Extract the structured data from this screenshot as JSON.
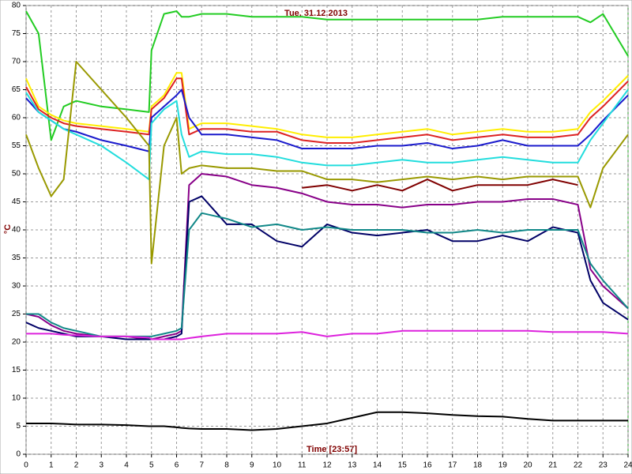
{
  "chart_data": {
    "type": "line",
    "title": "Tue, 31.12.2013",
    "x_label": "Time [23:57]",
    "y_label": "°C",
    "x": [
      0,
      0.5,
      1,
      1.5,
      2,
      3,
      4,
      4.9,
      5,
      5.5,
      6,
      6.2,
      6.5,
      7,
      8,
      9,
      10,
      11,
      12,
      13,
      14,
      15,
      16,
      17,
      18,
      19,
      20,
      21,
      22,
      22.5,
      23,
      24
    ],
    "xlim": [
      0,
      24
    ],
    "xticks": [
      0,
      1,
      2,
      3,
      4,
      5,
      6,
      7,
      8,
      9,
      10,
      11,
      12,
      13,
      14,
      15,
      16,
      17,
      18,
      19,
      20,
      21,
      22,
      23,
      24
    ],
    "ylim": [
      0,
      80
    ],
    "yticks": [
      0,
      5,
      10,
      15,
      20,
      25,
      30,
      35,
      40,
      45,
      50,
      55,
      60,
      65,
      70,
      75,
      80
    ],
    "grid": true,
    "series": [
      {
        "color": "#22cc22",
        "values": [
          79,
          75,
          56,
          62,
          63,
          62,
          61.5,
          61,
          72,
          78.5,
          79,
          78,
          78,
          78.5,
          78.5,
          78,
          78,
          78,
          77.5,
          77.5,
          77.5,
          77.5,
          77.5,
          77.5,
          77.5,
          78,
          78,
          78,
          78,
          77,
          78.5,
          71
        ]
      },
      {
        "color": "#ffee00",
        "values": [
          67,
          62,
          60.5,
          59.5,
          59,
          58.5,
          58,
          57.5,
          62,
          64,
          68,
          68,
          58,
          59,
          59,
          58.5,
          58,
          57,
          56.5,
          56.5,
          57,
          57.5,
          58,
          57,
          57.5,
          58,
          57.5,
          57.5,
          58,
          61,
          63,
          67.5
        ]
      },
      {
        "color": "#dd2222",
        "values": [
          65.5,
          61.5,
          60,
          59,
          58.5,
          58,
          57.5,
          57,
          61.5,
          63.5,
          67,
          67,
          57,
          58,
          58,
          57.5,
          57.5,
          56,
          55.5,
          55.5,
          56,
          56.5,
          57,
          56,
          56.5,
          57,
          56.5,
          56.5,
          57,
          60,
          62,
          66.5
        ]
      },
      {
        "color": "#1a1acc",
        "values": [
          63.5,
          61,
          59.5,
          58,
          57.5,
          56,
          55,
          54,
          60,
          62,
          64,
          65,
          60,
          57,
          57,
          56.5,
          56,
          54.5,
          54.5,
          54.5,
          55,
          55,
          55.5,
          54.5,
          55,
          56,
          55,
          55,
          55,
          57,
          59.5,
          64
        ]
      },
      {
        "color": "#22dddd",
        "values": [
          64.5,
          61,
          59.5,
          58,
          57,
          55,
          52,
          49,
          59,
          61.5,
          63,
          57,
          53,
          54,
          53.5,
          53.5,
          53,
          52,
          51.5,
          51.5,
          52,
          52.5,
          52,
          52,
          52.5,
          53,
          52.5,
          52,
          52,
          56,
          59,
          65
        ]
      },
      {
        "color": "#999900",
        "values": [
          57,
          51,
          46,
          49,
          70,
          65,
          60,
          55,
          34,
          55,
          60,
          50,
          51,
          51.5,
          51,
          51,
          50.5,
          50.5,
          49,
          49,
          48.5,
          49,
          49.5,
          49,
          49.5,
          49,
          49.5,
          49.5,
          49.5,
          44,
          51,
          57
        ]
      },
      {
        "color": "#880088",
        "values": [
          25,
          24.5,
          23,
          22,
          21.5,
          21,
          21,
          20.5,
          20.5,
          21,
          21.5,
          22,
          48,
          50,
          49.5,
          48,
          47.5,
          46.5,
          45,
          44.5,
          44.5,
          44,
          44.5,
          44.5,
          45,
          45,
          45.5,
          45.5,
          44.5,
          33,
          30,
          26
        ]
      },
      {
        "color": "#800000",
        "values": [
          null,
          null,
          null,
          null,
          null,
          null,
          null,
          null,
          null,
          null,
          null,
          null,
          null,
          null,
          null,
          null,
          null,
          47.5,
          48,
          47,
          48,
          47,
          49,
          47,
          48,
          48,
          48,
          49,
          48,
          null,
          null,
          null
        ]
      },
      {
        "color": "#000066",
        "values": [
          23.5,
          22.5,
          22,
          21.5,
          21,
          21,
          20.5,
          20.5,
          20.5,
          20.5,
          21,
          21.5,
          45,
          46,
          41,
          41,
          38,
          37,
          41,
          39.5,
          39,
          39.5,
          40,
          38,
          38,
          39,
          38,
          40.5,
          39.5,
          31,
          27,
          24
        ]
      },
      {
        "color": "#118888",
        "values": [
          25,
          25,
          23.5,
          22.5,
          22,
          21,
          21,
          21,
          21,
          21.5,
          22,
          22.5,
          40,
          43,
          42,
          40.5,
          41,
          40,
          40.5,
          40,
          40,
          40,
          39.5,
          39.5,
          40,
          39.5,
          40,
          40,
          40,
          34,
          31,
          26
        ]
      },
      {
        "color": "#dd22dd",
        "values": [
          21.5,
          21.5,
          21.5,
          21.3,
          21.2,
          21,
          21,
          20.8,
          20.5,
          20.5,
          20.5,
          20.5,
          20.7,
          21,
          21.5,
          21.5,
          21.5,
          21.8,
          21,
          21.5,
          21.5,
          22,
          22,
          22,
          22,
          22,
          22,
          21.8,
          21.8,
          21.8,
          21.8,
          21.5
        ]
      },
      {
        "color": "#000000",
        "values": [
          5.5,
          5.5,
          5.5,
          5.4,
          5.3,
          5.3,
          5.2,
          5,
          5,
          5,
          4.8,
          4.7,
          4.6,
          4.5,
          4.5,
          4.3,
          4.5,
          5,
          5.5,
          6.5,
          7.5,
          7.5,
          7.3,
          7,
          6.8,
          6.7,
          6.3,
          6,
          6,
          6,
          6,
          6
        ]
      }
    ]
  }
}
